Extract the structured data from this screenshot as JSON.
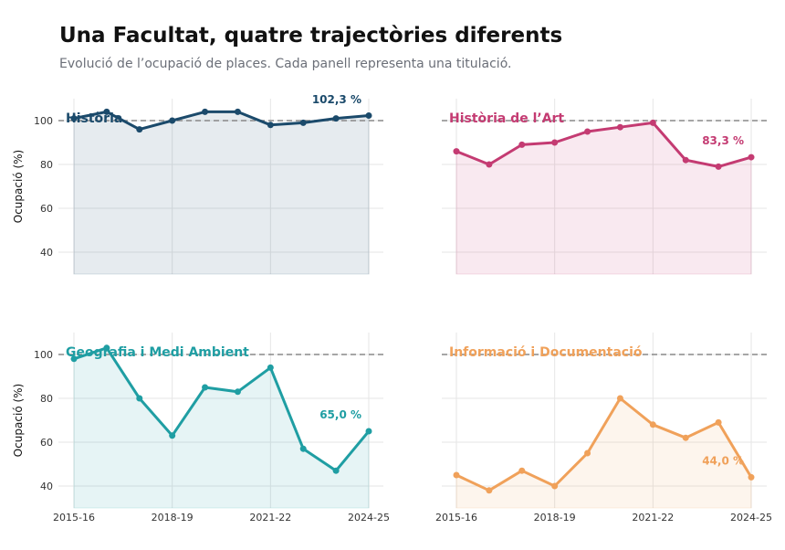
{
  "title": "Una Facultat, quatre trajectòries diferents",
  "subtitle": "Evolució de l’ocupació de places. Cada panell representa una titulació.",
  "chart_data": {
    "type": "line",
    "categories": [
      "2015-16",
      "2016-17",
      "2017-18",
      "2018-19",
      "2019-20",
      "2020-21",
      "2021-22",
      "2022-23",
      "2023-24",
      "2024-25"
    ],
    "x_tick_labels": [
      "2015-16",
      "2018-19",
      "2021-22",
      "2024-25"
    ],
    "ylabel": "Ocupació (%)",
    "ylim": [
      30,
      110
    ],
    "y_ticks": [
      40,
      60,
      80,
      100
    ],
    "reference_line": 100,
    "grid": true,
    "panels": [
      {
        "name": "Història",
        "color": "#1b4a6b",
        "values": [
          101,
          104,
          96,
          100,
          104,
          104,
          98,
          99,
          101,
          102.3
        ],
        "end_label": "102,3 %"
      },
      {
        "name": "Història de l’Art",
        "color": "#c43b72",
        "values": [
          86,
          80,
          89,
          90,
          95,
          97,
          99,
          82,
          79,
          83.3
        ],
        "end_label": "83,3 %"
      },
      {
        "name": "Geografia i Medi Ambient",
        "color": "#1f9ea3",
        "values": [
          98,
          103,
          80,
          63,
          85,
          83,
          94,
          57,
          47,
          65.0
        ],
        "end_label": "65,0 %"
      },
      {
        "name": "Informació i Documentació",
        "color": "#f0a15a",
        "values": [
          45,
          38,
          47,
          40,
          55,
          80,
          68,
          62,
          69,
          44.0
        ],
        "end_label": "44,0 %"
      }
    ]
  }
}
